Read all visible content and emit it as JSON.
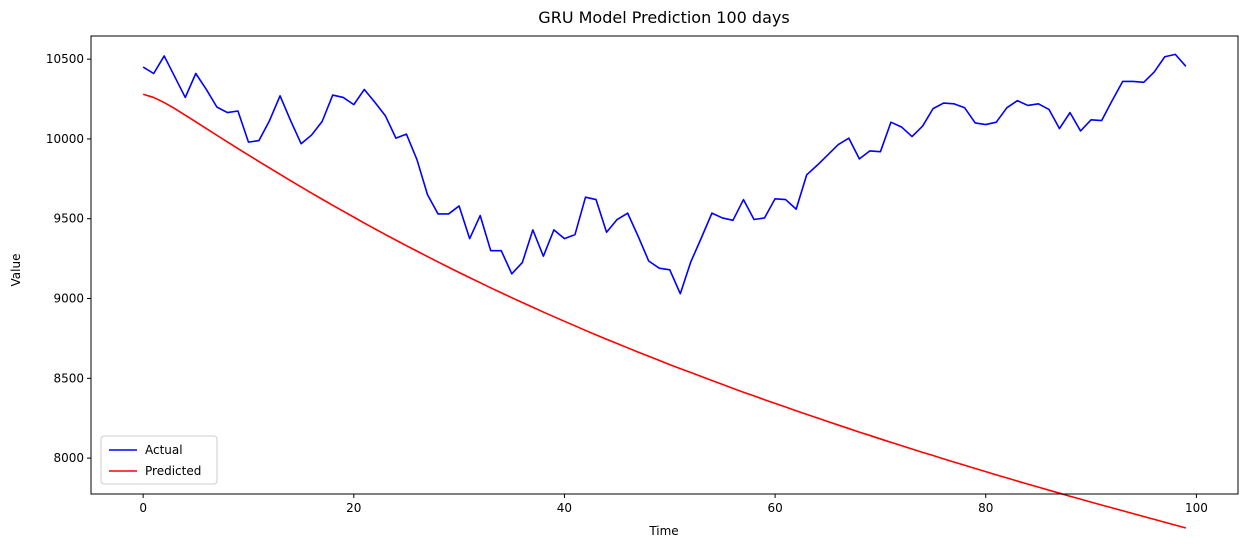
{
  "chart_data": {
    "type": "line",
    "title": "GRU Model Prediction 100 days",
    "xlabel": "Time",
    "ylabel": "Value",
    "xlim": [
      -4.95,
      103.95
    ],
    "ylim": [
      7775,
      10645
    ],
    "xticks": [
      0,
      20,
      40,
      60,
      80,
      100
    ],
    "yticks": [
      8000,
      8500,
      9000,
      9500,
      10000,
      10500
    ],
    "grid": false,
    "legend_position": "lower-left",
    "series": [
      {
        "name": "Actual",
        "color": "#0000ff",
        "x": [
          0,
          1,
          2,
          3,
          4,
          5,
          6,
          7,
          8,
          9,
          10,
          11,
          12,
          13,
          14,
          15,
          16,
          17,
          18,
          19,
          20,
          21,
          22,
          23,
          24,
          25,
          26,
          27,
          28,
          29,
          30,
          31,
          32,
          33,
          34,
          35,
          36,
          37,
          38,
          39,
          40,
          41,
          42,
          43,
          44,
          45,
          46,
          47,
          48,
          49,
          50,
          51,
          52,
          53,
          54,
          55,
          56,
          57,
          58,
          59,
          60,
          61,
          62,
          63,
          64,
          65,
          66,
          67,
          68,
          69,
          70,
          71,
          72,
          73,
          74,
          75,
          76,
          77,
          78,
          79,
          80,
          81,
          82,
          83,
          84,
          85,
          86,
          87,
          88,
          89,
          90,
          91,
          92,
          93,
          94,
          95,
          96,
          97,
          98,
          99
        ],
        "values": [
          10450,
          10410,
          10520,
          10390,
          10260,
          10410,
          10310,
          10200,
          10165,
          10175,
          9980,
          9990,
          10115,
          10270,
          10115,
          9970,
          10025,
          10110,
          10275,
          10260,
          10215,
          10310,
          10230,
          10145,
          10005,
          10030,
          9870,
          9650,
          9530,
          9530,
          9580,
          9375,
          9520,
          9300,
          9300,
          9155,
          9225,
          9430,
          9265,
          9430,
          9375,
          9400,
          9635,
          9620,
          9415,
          9495,
          9535,
          9390,
          9235,
          9190,
          9180,
          9030,
          9230,
          9380,
          9535,
          9505,
          9490,
          9620,
          9495,
          9505,
          9625,
          9620,
          9560,
          9775,
          9835,
          9900,
          9965,
          10005,
          9875,
          9925,
          9920,
          10105,
          10075,
          10015,
          10080,
          10190,
          10225,
          10220,
          10195,
          10100,
          10090,
          10105,
          10195,
          10240,
          10210,
          10220,
          10185,
          10065,
          10165,
          10050,
          10120,
          10115,
          10240,
          10360,
          10360,
          10355,
          10420,
          10515,
          10530,
          10455
        ]
      },
      {
        "name": "Predicted",
        "color": "#ff0000",
        "x": [
          0,
          1,
          2,
          3,
          4,
          5,
          6,
          7,
          8,
          9,
          10,
          11,
          12,
          13,
          14,
          15,
          16,
          17,
          18,
          19,
          20,
          21,
          22,
          23,
          24,
          25,
          26,
          27,
          28,
          29,
          30,
          31,
          32,
          33,
          34,
          35,
          36,
          37,
          38,
          39,
          40,
          41,
          42,
          43,
          44,
          45,
          46,
          47,
          48,
          49,
          50,
          51,
          52,
          53,
          54,
          55,
          56,
          57,
          58,
          59,
          60,
          61,
          62,
          63,
          64,
          65,
          66,
          67,
          68,
          69,
          70,
          71,
          72,
          73,
          74,
          75,
          76,
          77,
          78,
          79,
          80,
          81,
          82,
          83,
          84,
          85,
          86,
          87,
          88,
          89,
          90,
          91,
          92,
          93,
          94,
          95,
          96,
          97,
          98,
          99
        ],
        "values": [
          10280,
          10260,
          10228,
          10190,
          10149,
          10107,
          10065,
          10023,
          9981,
          9940,
          9899,
          9858,
          9818,
          9778,
          9738,
          9699,
          9660,
          9622,
          9584,
          9547,
          9510,
          9473,
          9437,
          9401,
          9366,
          9331,
          9297,
          9263,
          9229,
          9196,
          9163,
          9131,
          9099,
          9067,
          9036,
          9005,
          8975,
          8945,
          8915,
          8886,
          8857,
          8829,
          8800,
          8772,
          8745,
          8718,
          8691,
          8664,
          8638,
          8612,
          8586,
          8561,
          8536,
          8511,
          8486,
          8462,
          8437,
          8413,
          8390,
          8366,
          8343,
          8320,
          8297,
          8274,
          8252,
          8229,
          8207,
          8185,
          8163,
          8142,
          8120,
          8099,
          8078,
          8057,
          8036,
          8016,
          7995,
          7975,
          7955,
          7935,
          7915,
          7895,
          7876,
          7856,
          7837,
          7818,
          7799,
          7780,
          7761,
          7743,
          7724,
          7706,
          7688,
          7670,
          7652,
          7634,
          7616,
          7598,
          7580,
          7562
        ]
      }
    ]
  }
}
